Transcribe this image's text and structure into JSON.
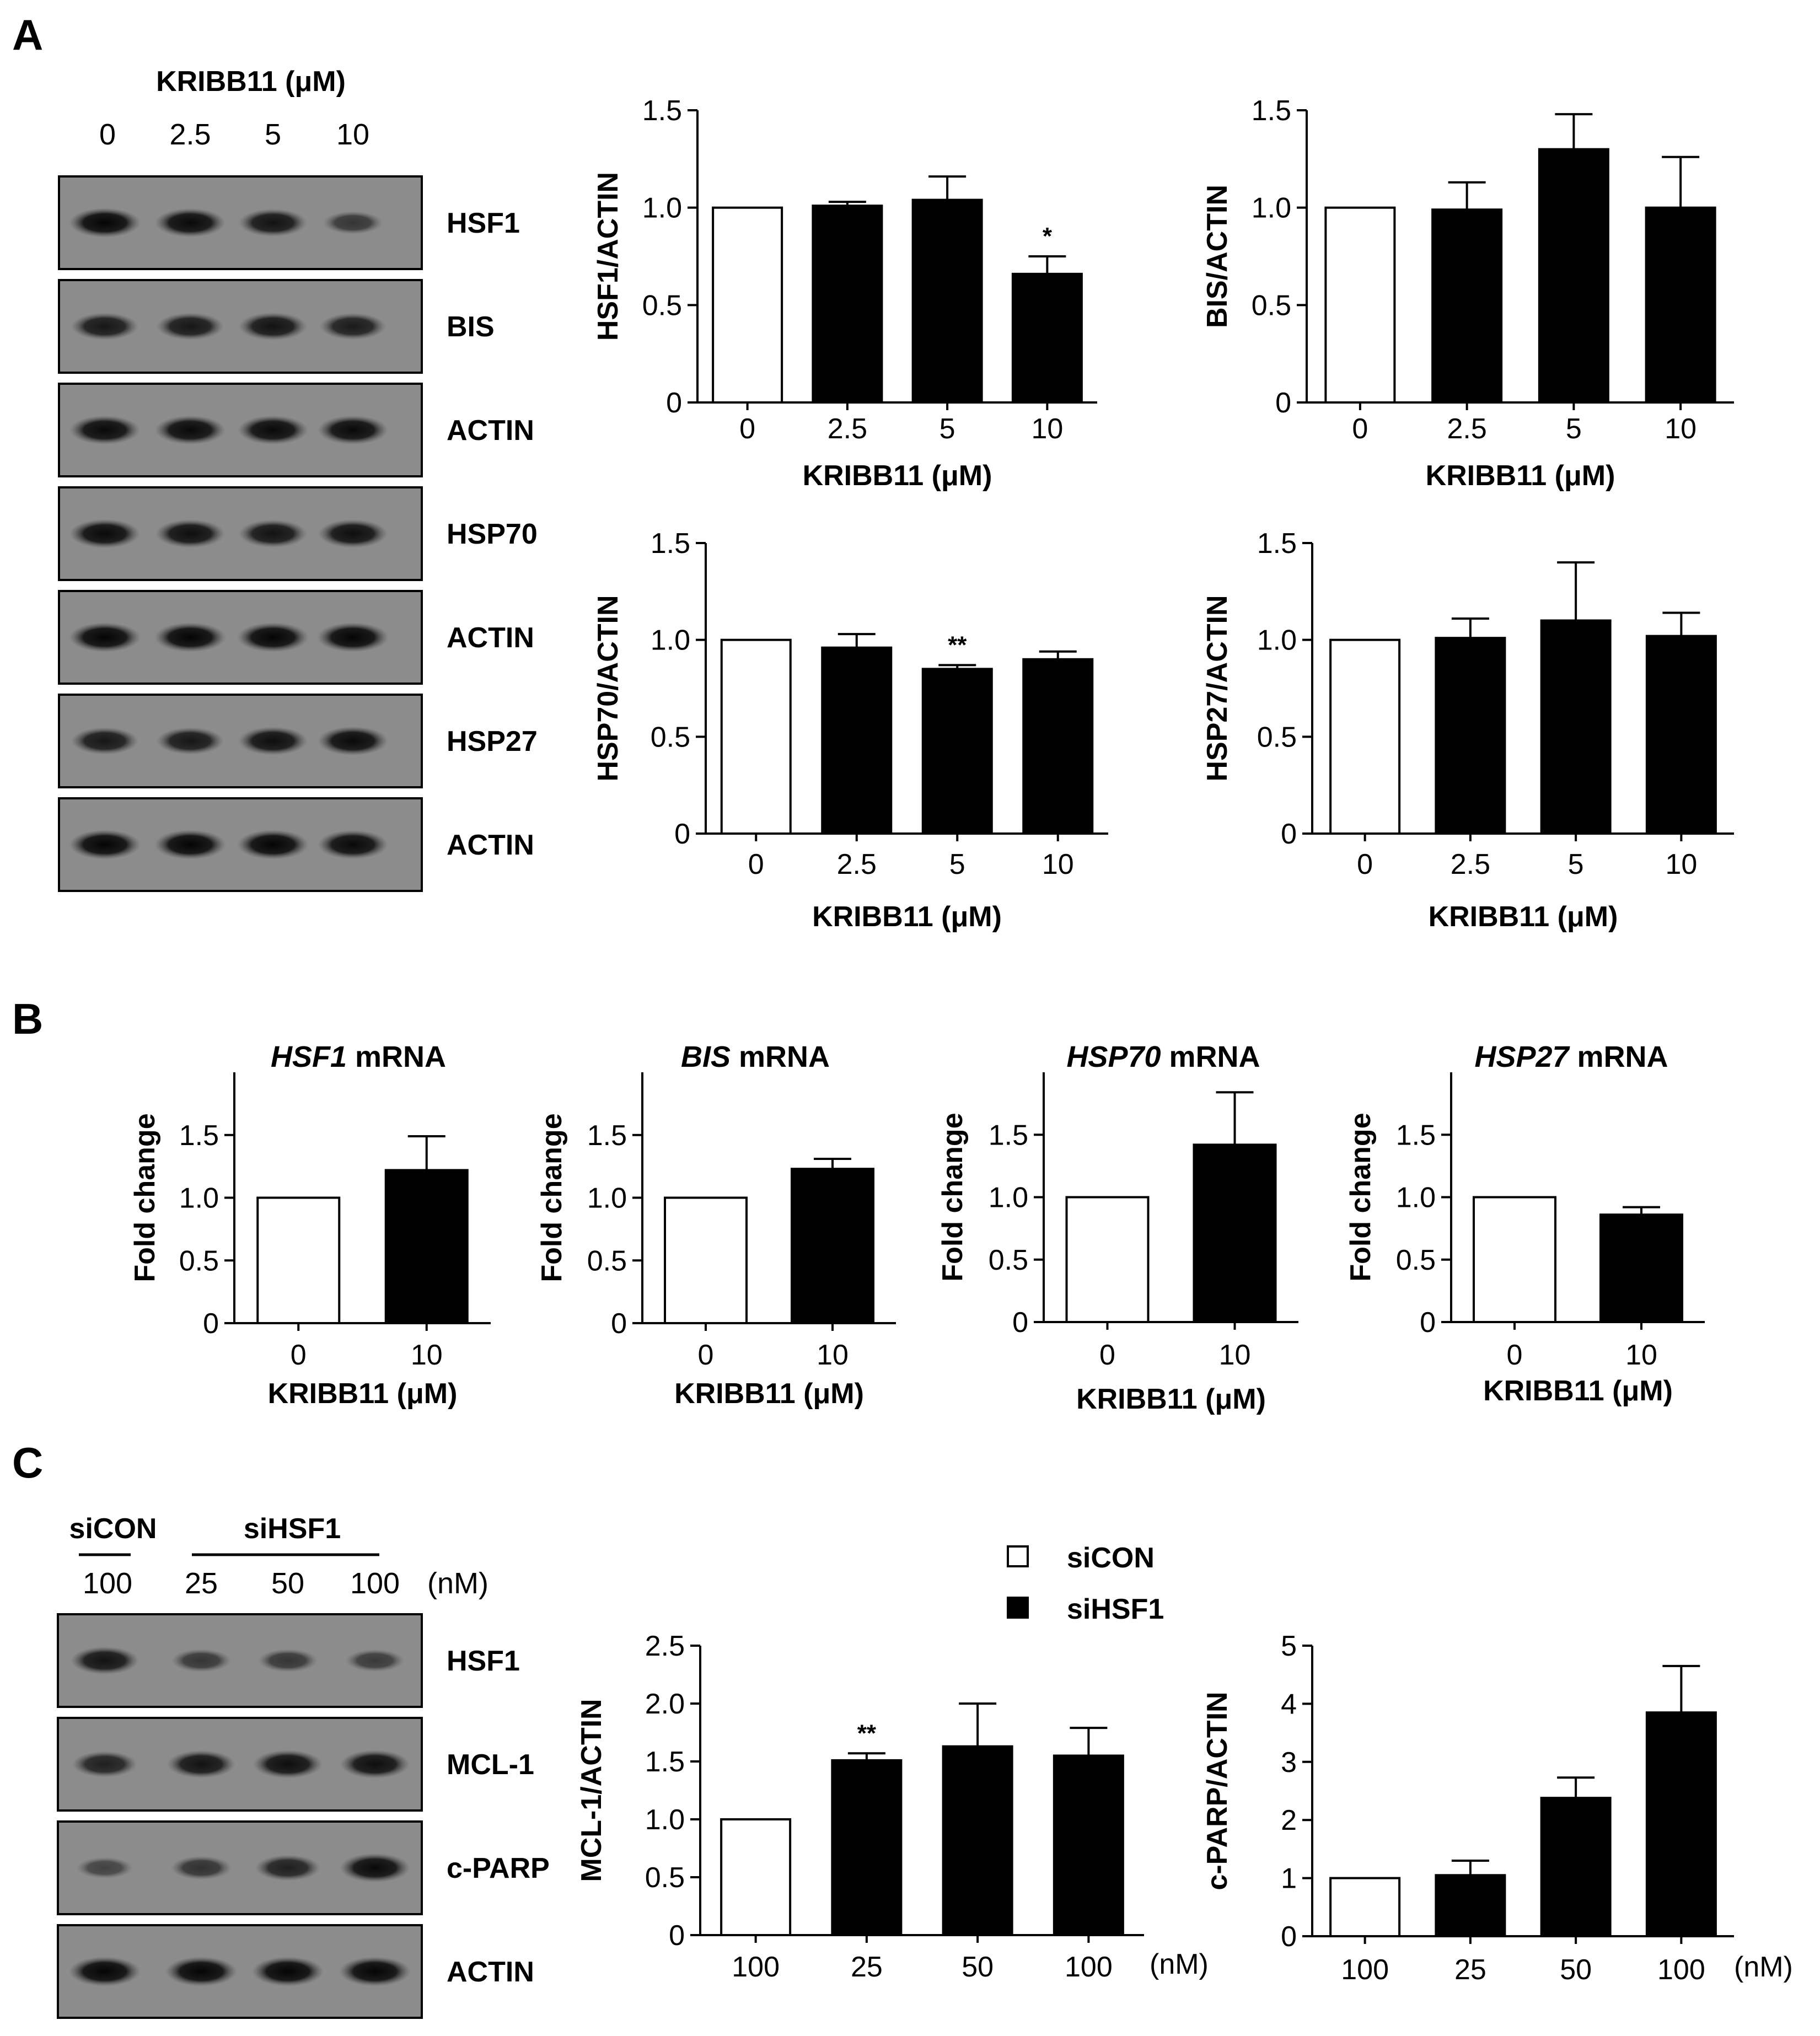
{
  "panel_labels": [
    "A",
    "B",
    "C"
  ],
  "blots": [
    {
      "id": "A",
      "header": "KRIBB11 (μM)",
      "lanes": [
        "0",
        "2.5",
        "5",
        "10"
      ],
      "rows": [
        {
          "label": "HSF1",
          "intensity": [
            1.0,
            0.95,
            0.85,
            0.45
          ]
        },
        {
          "label": "BIS",
          "intensity": [
            0.8,
            0.8,
            0.85,
            0.75
          ]
        },
        {
          "label": "ACTIN",
          "intensity": [
            0.95,
            0.95,
            0.95,
            0.95
          ]
        },
        {
          "label": "HSP70",
          "intensity": [
            0.95,
            0.9,
            0.85,
            0.9
          ]
        },
        {
          "label": "ACTIN",
          "intensity": [
            1.0,
            1.0,
            1.0,
            1.0
          ]
        },
        {
          "label": "HSP27",
          "intensity": [
            0.8,
            0.8,
            0.9,
            0.95
          ]
        },
        {
          "label": "ACTIN",
          "intensity": [
            1.0,
            1.0,
            1.0,
            0.95
          ]
        }
      ]
    },
    {
      "id": "C",
      "group_headers": [
        "siCON",
        "siHSF1"
      ],
      "lanes": [
        "100",
        "25",
        "50",
        "100"
      ],
      "unit": "(nM)",
      "rows": [
        {
          "label": "HSF1",
          "intensity": [
            0.85,
            0.45,
            0.45,
            0.4
          ]
        },
        {
          "label": "MCL-1",
          "intensity": [
            0.7,
            0.85,
            0.9,
            0.9
          ]
        },
        {
          "label": "c-PARP",
          "intensity": [
            0.3,
            0.5,
            0.7,
            0.95
          ]
        },
        {
          "label": "ACTIN",
          "intensity": [
            1.0,
            1.0,
            1.0,
            1.0
          ]
        }
      ]
    }
  ],
  "legend": {
    "items": [
      {
        "label": "siCON",
        "fill": "#ffffff"
      },
      {
        "label": "siHSF1",
        "fill": "#000000"
      }
    ]
  },
  "colors": {
    "control": "#ffffff",
    "treated": "#000000",
    "axis": "#000000"
  },
  "chart_data": [
    {
      "type": "bar",
      "panel": "A",
      "categories": [
        "0",
        "2.5",
        "5",
        "10"
      ],
      "values": [
        1.0,
        1.01,
        1.04,
        0.66
      ],
      "errors": [
        0,
        0.02,
        0.12,
        0.09
      ],
      "significance": [
        "",
        "",
        "",
        "*"
      ],
      "xlabel": "KRIBB11 (μM)",
      "ylabel": "HSF1/ACTIN",
      "ylim": [
        0,
        1.5
      ],
      "yticks": [
        "0",
        "0.5",
        "1.0",
        "1.5"
      ]
    },
    {
      "type": "bar",
      "panel": "A",
      "categories": [
        "0",
        "2.5",
        "5",
        "10"
      ],
      "values": [
        1.0,
        0.99,
        1.3,
        1.0
      ],
      "errors": [
        0,
        0.14,
        0.18,
        0.26
      ],
      "significance": [
        "",
        "",
        "",
        ""
      ],
      "xlabel": "KRIBB11 (μM)",
      "ylabel": "BIS/ACTIN",
      "ylim": [
        0,
        1.5
      ],
      "yticks": [
        "0",
        "0.5",
        "1.0",
        "1.5"
      ]
    },
    {
      "type": "bar",
      "panel": "A",
      "categories": [
        "0",
        "2.5",
        "5",
        "10"
      ],
      "values": [
        1.0,
        0.96,
        0.85,
        0.9
      ],
      "errors": [
        0,
        0.07,
        0.02,
        0.04
      ],
      "significance": [
        "",
        "",
        "**",
        ""
      ],
      "xlabel": "KRIBB11 (μM)",
      "ylabel": "HSP70/ACTIN",
      "ylim": [
        0,
        1.5
      ],
      "yticks": [
        "0",
        "0.5",
        "1.0",
        "1.5"
      ]
    },
    {
      "type": "bar",
      "panel": "A",
      "categories": [
        "0",
        "2.5",
        "5",
        "10"
      ],
      "values": [
        1.0,
        1.01,
        1.1,
        1.02
      ],
      "errors": [
        0,
        0.1,
        0.3,
        0.12
      ],
      "significance": [
        "",
        "",
        "",
        ""
      ],
      "xlabel": "KRIBB11 (μM)",
      "ylabel": "HSP27/ACTIN",
      "ylim": [
        0,
        1.5
      ],
      "yticks": [
        "0",
        "0.5",
        "1.0",
        "1.5"
      ]
    },
    {
      "type": "bar",
      "panel": "B",
      "title_italic": "HSF1",
      "title_rest": " mRNA",
      "categories": [
        "0",
        "10"
      ],
      "values": [
        1.0,
        1.22
      ],
      "errors": [
        0,
        0.27
      ],
      "xlabel": "KRIBB11 (μM)",
      "ylabel": "Fold change",
      "ylim": [
        0,
        2.0
      ],
      "yticks": [
        "0",
        "0.5",
        "1.0",
        "1.5"
      ]
    },
    {
      "type": "bar",
      "panel": "B",
      "title_italic": "BIS",
      "title_rest": " mRNA",
      "categories": [
        "0",
        "10"
      ],
      "values": [
        1.0,
        1.23
      ],
      "errors": [
        0,
        0.08
      ],
      "xlabel": "KRIBB11 (μM)",
      "ylabel": "Fold change",
      "ylim": [
        0,
        2.0
      ],
      "yticks": [
        "0",
        "0.5",
        "1.0",
        "1.5"
      ]
    },
    {
      "type": "bar",
      "panel": "B",
      "title_italic": "HSP70",
      "title_rest": " mRNA",
      "categories": [
        "0",
        "10"
      ],
      "values": [
        1.0,
        1.42
      ],
      "errors": [
        0,
        0.42
      ],
      "xlabel": "KRIBB11 (μM)",
      "ylabel": "Fold change",
      "ylim": [
        0,
        2.0
      ],
      "yticks": [
        "0",
        "0.5",
        "1.0",
        "1.5"
      ]
    },
    {
      "type": "bar",
      "panel": "B",
      "title_italic": "HSP27",
      "title_rest": " mRNA",
      "categories": [
        "0",
        "10"
      ],
      "values": [
        1.0,
        0.86
      ],
      "errors": [
        0,
        0.06
      ],
      "xlabel": "KRIBB11 (μM)",
      "ylabel": "Fold change",
      "ylim": [
        0,
        2.0
      ],
      "yticks": [
        "0",
        "0.5",
        "1.0",
        "1.5"
      ]
    },
    {
      "type": "bar",
      "panel": "C",
      "categories": [
        "100",
        "25",
        "50",
        "100"
      ],
      "values": [
        1.0,
        1.51,
        1.63,
        1.55
      ],
      "errors": [
        0,
        0.06,
        0.37,
        0.24
      ],
      "significance": [
        "",
        "**",
        "",
        ""
      ],
      "xlabel": "(nM)",
      "ylabel": "MCL-1/ACTIN",
      "ylim": [
        0,
        2.5
      ],
      "yticks": [
        "0",
        "0.5",
        "1.0",
        "1.5",
        "2.0",
        "2.5"
      ]
    },
    {
      "type": "bar",
      "panel": "C",
      "categories": [
        "100",
        "25",
        "50",
        "100"
      ],
      "values": [
        1.0,
        1.05,
        2.38,
        3.85
      ],
      "errors": [
        0,
        0.25,
        0.35,
        0.8
      ],
      "significance": [
        "",
        "",
        "",
        ""
      ],
      "xlabel": "(nM)",
      "ylabel": "c-PARP/ACTIN",
      "ylim": [
        0,
        5
      ],
      "yticks": [
        "0",
        "1",
        "2",
        "3",
        "4",
        "5"
      ]
    }
  ]
}
